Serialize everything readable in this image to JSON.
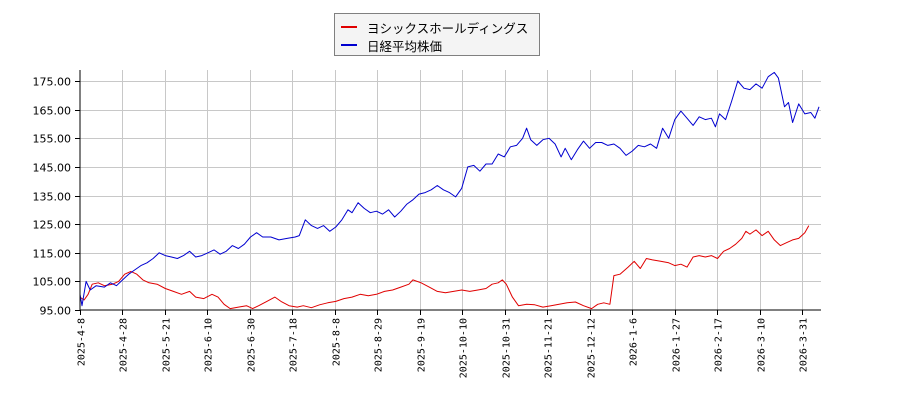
{
  "legend": {
    "items": [
      {
        "label": "ヨシックスホールディングス",
        "color": "#e00000"
      },
      {
        "label": "日経平均株価",
        "color": "#0000d0"
      }
    ]
  },
  "chart_data": {
    "type": "line",
    "title": "",
    "xlabel": "",
    "ylabel": "",
    "ylim": [
      95,
      178.8
    ],
    "grid": true,
    "legend_position": "top-center",
    "y_ticks": [
      "95.00",
      "105.00",
      "115.00",
      "125.00",
      "135.00",
      "145.00",
      "155.00",
      "165.00",
      "175.00"
    ],
    "x_ticks": [
      "2025-4-8",
      "2025-4-28",
      "2025-5-21",
      "2025-6-10",
      "2025-6-30",
      "2025-7-18",
      "2025-8-8",
      "2025-8-29",
      "2025-9-19",
      "2025-10-10",
      "2025-10-31",
      "2025-11-21",
      "2025-12-12",
      "2026-1-6",
      "2026-1-27",
      "2026-2-17",
      "2026-3-10",
      "2026-3-31"
    ],
    "x_range_days": [
      0,
      365
    ],
    "series": [
      {
        "name": "ヨシックスホールディングス",
        "color": "#e00000",
        "points": [
          [
            0,
            99.5
          ],
          [
            2,
            98.5
          ],
          [
            4,
            100.5
          ],
          [
            6,
            104.0
          ],
          [
            9,
            104.5
          ],
          [
            12,
            103.5
          ],
          [
            16,
            104.0
          ],
          [
            19,
            105.0
          ],
          [
            22,
            107.5
          ],
          [
            25,
            108.5
          ],
          [
            28,
            107.5
          ],
          [
            31,
            105.5
          ],
          [
            34,
            104.5
          ],
          [
            38,
            104.0
          ],
          [
            42,
            102.5
          ],
          [
            46,
            101.5
          ],
          [
            50,
            100.5
          ],
          [
            54,
            101.5
          ],
          [
            57,
            99.5
          ],
          [
            61,
            99.0
          ],
          [
            65,
            100.5
          ],
          [
            68,
            99.5
          ],
          [
            71,
            97.0
          ],
          [
            74,
            95.5
          ],
          [
            78,
            96.0
          ],
          [
            82,
            96.5
          ],
          [
            85,
            95.5
          ],
          [
            88,
            96.5
          ],
          [
            92,
            98.0
          ],
          [
            96,
            99.5
          ],
          [
            99,
            98.0
          ],
          [
            103,
            96.5
          ],
          [
            107,
            96.0
          ],
          [
            110,
            96.5
          ],
          [
            114,
            95.8
          ],
          [
            118,
            96.8
          ],
          [
            122,
            97.5
          ],
          [
            126,
            98.0
          ],
          [
            130,
            99.0
          ],
          [
            134,
            99.5
          ],
          [
            138,
            100.5
          ],
          [
            142,
            100.0
          ],
          [
            146,
            100.5
          ],
          [
            150,
            101.5
          ],
          [
            154,
            102.0
          ],
          [
            158,
            103.0
          ],
          [
            162,
            104.0
          ],
          [
            164,
            105.5
          ],
          [
            168,
            104.5
          ],
          [
            172,
            103.0
          ],
          [
            176,
            101.5
          ],
          [
            180,
            101.0
          ],
          [
            184,
            101.5
          ],
          [
            188,
            102.0
          ],
          [
            192,
            101.5
          ],
          [
            196,
            102.0
          ],
          [
            200,
            102.5
          ],
          [
            203,
            104.0
          ],
          [
            206,
            104.5
          ],
          [
            208,
            105.5
          ],
          [
            210,
            104.0
          ],
          [
            213,
            99.5
          ],
          [
            216,
            96.5
          ],
          [
            220,
            97.0
          ],
          [
            224,
            96.8
          ],
          [
            228,
            96.0
          ],
          [
            232,
            96.5
          ],
          [
            236,
            97.0
          ],
          [
            240,
            97.5
          ],
          [
            244,
            97.8
          ],
          [
            248,
            96.5
          ],
          [
            252,
            95.5
          ],
          [
            255,
            97.0
          ],
          [
            258,
            97.5
          ],
          [
            261,
            97.0
          ],
          [
            263,
            107.0
          ],
          [
            266,
            107.5
          ],
          [
            270,
            110.0
          ],
          [
            273,
            112.0
          ],
          [
            276,
            109.5
          ],
          [
            279,
            113.0
          ],
          [
            282,
            112.5
          ],
          [
            286,
            112.0
          ],
          [
            290,
            111.5
          ],
          [
            293,
            110.5
          ],
          [
            296,
            111.0
          ],
          [
            299,
            110.0
          ],
          [
            302,
            113.5
          ],
          [
            305,
            114.0
          ],
          [
            308,
            113.5
          ],
          [
            311,
            114.0
          ],
          [
            314,
            113.0
          ],
          [
            317,
            115.5
          ],
          [
            320,
            116.5
          ],
          [
            323,
            118.0
          ],
          [
            326,
            120.0
          ],
          [
            328,
            122.5
          ],
          [
            330,
            121.5
          ],
          [
            333,
            123.0
          ],
          [
            336,
            121.0
          ],
          [
            339,
            122.5
          ],
          [
            342,
            119.5
          ],
          [
            345,
            117.5
          ],
          [
            348,
            118.5
          ],
          [
            351,
            119.5
          ],
          [
            354,
            120.0
          ],
          [
            357,
            122.0
          ],
          [
            359,
            124.5
          ]
        ]
      },
      {
        "name": "日経平均株価",
        "color": "#0000d0",
        "points": [
          [
            0,
            100.5
          ],
          [
            1,
            96.5
          ],
          [
            3,
            105.0
          ],
          [
            5,
            102.0
          ],
          [
            8,
            103.5
          ],
          [
            12,
            103.0
          ],
          [
            15,
            104.5
          ],
          [
            18,
            103.5
          ],
          [
            21,
            105.5
          ],
          [
            24,
            107.5
          ],
          [
            27,
            109.0
          ],
          [
            30,
            110.5
          ],
          [
            33,
            111.5
          ],
          [
            36,
            113.0
          ],
          [
            39,
            115.0
          ],
          [
            42,
            114.0
          ],
          [
            45,
            113.5
          ],
          [
            48,
            113.0
          ],
          [
            51,
            114.0
          ],
          [
            54,
            115.5
          ],
          [
            57,
            113.5
          ],
          [
            60,
            114.0
          ],
          [
            63,
            115.0
          ],
          [
            66,
            116.0
          ],
          [
            69,
            114.5
          ],
          [
            72,
            115.5
          ],
          [
            75,
            117.5
          ],
          [
            78,
            116.5
          ],
          [
            81,
            118.0
          ],
          [
            84,
            120.5
          ],
          [
            87,
            122.0
          ],
          [
            90,
            120.5
          ],
          [
            94,
            120.5
          ],
          [
            98,
            119.5
          ],
          [
            102,
            120.0
          ],
          [
            106,
            120.5
          ],
          [
            108,
            121.0
          ],
          [
            111,
            126.5
          ],
          [
            114,
            124.5
          ],
          [
            117,
            123.5
          ],
          [
            120,
            124.5
          ],
          [
            123,
            122.5
          ],
          [
            126,
            124.0
          ],
          [
            129,
            126.5
          ],
          [
            132,
            130.0
          ],
          [
            134,
            129.0
          ],
          [
            137,
            132.5
          ],
          [
            140,
            130.5
          ],
          [
            143,
            129.0
          ],
          [
            146,
            129.5
          ],
          [
            149,
            128.5
          ],
          [
            152,
            130.0
          ],
          [
            155,
            127.5
          ],
          [
            158,
            129.5
          ],
          [
            161,
            132.0
          ],
          [
            164,
            133.5
          ],
          [
            167,
            135.5
          ],
          [
            170,
            136.0
          ],
          [
            173,
            137.0
          ],
          [
            176,
            138.5
          ],
          [
            179,
            137.0
          ],
          [
            182,
            136.0
          ],
          [
            185,
            134.5
          ],
          [
            188,
            137.5
          ],
          [
            191,
            145.0
          ],
          [
            194,
            145.5
          ],
          [
            197,
            143.5
          ],
          [
            200,
            146.0
          ],
          [
            203,
            146.0
          ],
          [
            206,
            149.5
          ],
          [
            209,
            148.5
          ],
          [
            212,
            152.0
          ],
          [
            215,
            152.5
          ],
          [
            218,
            155.0
          ],
          [
            220,
            158.5
          ],
          [
            222,
            154.5
          ],
          [
            225,
            152.5
          ],
          [
            228,
            154.5
          ],
          [
            231,
            155.0
          ],
          [
            234,
            153.0
          ],
          [
            237,
            148.5
          ],
          [
            239,
            151.5
          ],
          [
            242,
            147.5
          ],
          [
            245,
            151.0
          ],
          [
            248,
            154.0
          ],
          [
            251,
            151.5
          ],
          [
            254,
            153.5
          ],
          [
            257,
            153.5
          ],
          [
            260,
            152.5
          ],
          [
            263,
            153.0
          ],
          [
            266,
            151.5
          ],
          [
            269,
            149.0
          ],
          [
            272,
            150.5
          ],
          [
            275,
            152.5
          ],
          [
            278,
            152.0
          ],
          [
            281,
            153.0
          ],
          [
            284,
            151.5
          ],
          [
            287,
            158.5
          ],
          [
            290,
            155.0
          ],
          [
            293,
            161.5
          ],
          [
            296,
            164.5
          ],
          [
            299,
            162.0
          ],
          [
            302,
            159.5
          ],
          [
            305,
            162.5
          ],
          [
            308,
            161.5
          ],
          [
            311,
            162.0
          ],
          [
            313,
            159.0
          ],
          [
            315,
            163.5
          ],
          [
            318,
            161.5
          ],
          [
            321,
            168.0
          ],
          [
            324,
            175.0
          ],
          [
            327,
            172.5
          ],
          [
            330,
            172.0
          ],
          [
            333,
            174.0
          ],
          [
            336,
            172.5
          ],
          [
            339,
            176.5
          ],
          [
            342,
            178.0
          ],
          [
            344,
            176.0
          ],
          [
            347,
            166.0
          ],
          [
            349,
            167.5
          ],
          [
            351,
            160.5
          ],
          [
            354,
            167.0
          ],
          [
            357,
            163.5
          ],
          [
            360,
            164.0
          ],
          [
            362,
            162.0
          ],
          [
            364,
            166.0
          ]
        ]
      }
    ]
  }
}
